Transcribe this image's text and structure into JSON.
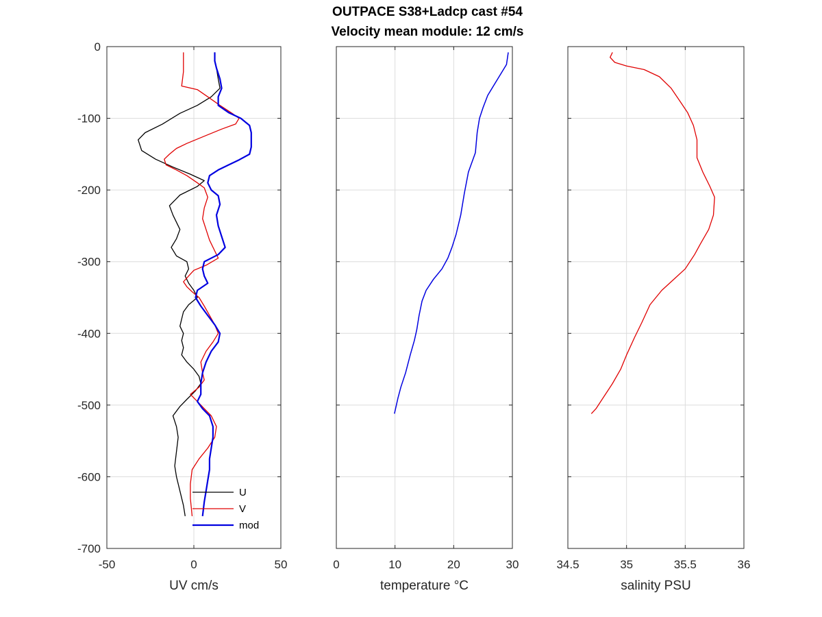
{
  "figure": {
    "title_line1": "OUTPACE S38+Ladcp cast #54",
    "title_line2": "Velocity mean module:  12 cm/s"
  },
  "chart_data": [
    {
      "type": "line",
      "id": "uv",
      "xlabel": "UV cm/s",
      "ylabel": "",
      "xlim": [
        -50,
        50
      ],
      "ylim": [
        -700,
        0
      ],
      "xticks": [
        -50,
        0,
        50
      ],
      "yticks": [
        0,
        -100,
        -200,
        -300,
        -400,
        -500,
        -600,
        -700
      ],
      "grid": true,
      "legend": {
        "placement": "bottom-right-inside",
        "entries": [
          "U",
          "V",
          "mod"
        ]
      },
      "series": [
        {
          "name": "U",
          "color": "#000000",
          "width": 1.3,
          "points": [
            [
              12,
              -8
            ],
            [
              12,
              -20
            ],
            [
              13,
              -30
            ],
            [
              14,
              -45
            ],
            [
              15,
              -58
            ],
            [
              10,
              -70
            ],
            [
              2,
              -82
            ],
            [
              -8,
              -93
            ],
            [
              -18,
              -108
            ],
            [
              -28,
              -120
            ],
            [
              -32,
              -130
            ],
            [
              -30,
              -145
            ],
            [
              -22,
              -157
            ],
            [
              -12,
              -168
            ],
            [
              -2,
              -178
            ],
            [
              6,
              -187
            ],
            [
              2,
              -195
            ],
            [
              -8,
              -207
            ],
            [
              -14,
              -222
            ],
            [
              -12,
              -235
            ],
            [
              -10,
              -245
            ],
            [
              -8,
              -255
            ],
            [
              -10,
              -268
            ],
            [
              -13,
              -280
            ],
            [
              -10,
              -292
            ],
            [
              -4,
              -300
            ],
            [
              -3,
              -310
            ],
            [
              -5,
              -320
            ],
            [
              -3,
              -330
            ],
            [
              0,
              -340
            ],
            [
              2,
              -350
            ],
            [
              -3,
              -360
            ],
            [
              -6,
              -370
            ],
            [
              -7,
              -380
            ],
            [
              -8,
              -390
            ],
            [
              -6,
              -400
            ],
            [
              -7,
              -410
            ],
            [
              -6,
              -420
            ],
            [
              -7,
              -430
            ],
            [
              -4,
              -440
            ],
            [
              0,
              -450
            ],
            [
              3,
              -460
            ],
            [
              4,
              -470
            ],
            [
              1,
              -480
            ],
            [
              -4,
              -492
            ],
            [
              -8,
              -502
            ],
            [
              -12,
              -515
            ],
            [
              -10,
              -530
            ],
            [
              -9,
              -545
            ],
            [
              -10,
              -565
            ],
            [
              -11,
              -585
            ],
            [
              -10,
              -600
            ],
            [
              -8,
              -620
            ],
            [
              -6,
              -640
            ],
            [
              -5,
              -655
            ]
          ]
        },
        {
          "name": "V",
          "color": "#e00000",
          "width": 1.3,
          "points": [
            [
              -6,
              -8
            ],
            [
              -6,
              -20
            ],
            [
              -6,
              -35
            ],
            [
              -7,
              -55
            ],
            [
              2,
              -60
            ],
            [
              8,
              -70
            ],
            [
              15,
              -82
            ],
            [
              22,
              -93
            ],
            [
              26,
              -100
            ],
            [
              24,
              -108
            ],
            [
              16,
              -115
            ],
            [
              6,
              -125
            ],
            [
              -4,
              -135
            ],
            [
              -10,
              -142
            ],
            [
              -14,
              -150
            ],
            [
              -17,
              -157
            ],
            [
              -16,
              -165
            ],
            [
              -10,
              -172
            ],
            [
              -4,
              -180
            ],
            [
              2,
              -190
            ],
            [
              6,
              -197
            ],
            [
              8,
              -210
            ],
            [
              6,
              -225
            ],
            [
              5,
              -240
            ],
            [
              7,
              -255
            ],
            [
              9,
              -270
            ],
            [
              12,
              -285
            ],
            [
              14,
              -295
            ],
            [
              7,
              -305
            ],
            [
              0,
              -312
            ],
            [
              -3,
              -320
            ],
            [
              -6,
              -328
            ],
            [
              -4,
              -335
            ],
            [
              -1,
              -342
            ],
            [
              3,
              -350
            ],
            [
              6,
              -362
            ],
            [
              9,
              -375
            ],
            [
              12,
              -388
            ],
            [
              14,
              -400
            ],
            [
              11,
              -412
            ],
            [
              7,
              -425
            ],
            [
              4,
              -440
            ],
            [
              5,
              -455
            ],
            [
              6,
              -465
            ],
            [
              3,
              -475
            ],
            [
              -2,
              -485
            ],
            [
              2,
              -495
            ],
            [
              6,
              -505
            ],
            [
              10,
              -515
            ],
            [
              13,
              -530
            ],
            [
              12,
              -545
            ],
            [
              8,
              -560
            ],
            [
              3,
              -575
            ],
            [
              -1,
              -590
            ],
            [
              -2,
              -610
            ],
            [
              -2,
              -630
            ],
            [
              -1,
              -655
            ]
          ]
        },
        {
          "name": "mod",
          "color": "#0000e0",
          "width": 2.2,
          "points": [
            [
              12,
              -8
            ],
            [
              12,
              -20
            ],
            [
              13,
              -30
            ],
            [
              15,
              -45
            ],
            [
              16,
              -58
            ],
            [
              14,
              -70
            ],
            [
              14,
              -82
            ],
            [
              20,
              -92
            ],
            [
              27,
              -100
            ],
            [
              32,
              -110
            ],
            [
              33,
              -120
            ],
            [
              33,
              -140
            ],
            [
              32,
              -150
            ],
            [
              26,
              -158
            ],
            [
              20,
              -165
            ],
            [
              14,
              -172
            ],
            [
              9,
              -180
            ],
            [
              8,
              -190
            ],
            [
              10,
              -200
            ],
            [
              14,
              -208
            ],
            [
              15,
              -220
            ],
            [
              13,
              -235
            ],
            [
              14,
              -250
            ],
            [
              16,
              -265
            ],
            [
              18,
              -280
            ],
            [
              14,
              -290
            ],
            [
              6,
              -300
            ],
            [
              5,
              -310
            ],
            [
              6,
              -320
            ],
            [
              8,
              -330
            ],
            [
              2,
              -340
            ],
            [
              1,
              -350
            ],
            [
              4,
              -362
            ],
            [
              8,
              -375
            ],
            [
              12,
              -388
            ],
            [
              15,
              -400
            ],
            [
              14,
              -412
            ],
            [
              10,
              -425
            ],
            [
              7,
              -440
            ],
            [
              5,
              -455
            ],
            [
              4,
              -470
            ],
            [
              4,
              -485
            ],
            [
              2,
              -495
            ],
            [
              5,
              -505
            ],
            [
              9,
              -515
            ],
            [
              11,
              -530
            ],
            [
              11,
              -545
            ],
            [
              10,
              -560
            ],
            [
              9,
              -575
            ],
            [
              9,
              -590
            ],
            [
              8,
              -605
            ],
            [
              7,
              -620
            ],
            [
              6,
              -635
            ],
            [
              5,
              -655
            ]
          ]
        }
      ]
    },
    {
      "type": "line",
      "id": "temp",
      "xlabel": "temperature °C",
      "ylabel": "",
      "xlim": [
        0,
        30
      ],
      "ylim": [
        -700,
        0
      ],
      "xticks": [
        0,
        10,
        20,
        30
      ],
      "yticks": [
        0,
        -100,
        -200,
        -300,
        -400,
        -500,
        -600,
        -700
      ],
      "grid": true,
      "series": [
        {
          "name": "",
          "color": "#0000e0",
          "width": 1.5,
          "points": [
            [
              29.3,
              -8
            ],
            [
              29.0,
              -25
            ],
            [
              27.5,
              -45
            ],
            [
              25.8,
              -68
            ],
            [
              25.0,
              -85
            ],
            [
              24.4,
              -100
            ],
            [
              24.0,
              -120
            ],
            [
              23.7,
              -148
            ],
            [
              22.5,
              -175
            ],
            [
              21.8,
              -205
            ],
            [
              21.2,
              -235
            ],
            [
              20.4,
              -262
            ],
            [
              19.7,
              -280
            ],
            [
              19.0,
              -295
            ],
            [
              18.0,
              -310
            ],
            [
              16.5,
              -325
            ],
            [
              15.3,
              -340
            ],
            [
              14.6,
              -355
            ],
            [
              14.1,
              -375
            ],
            [
              13.7,
              -395
            ],
            [
              13.3,
              -410
            ],
            [
              12.6,
              -430
            ],
            [
              11.8,
              -455
            ],
            [
              11.0,
              -475
            ],
            [
              10.5,
              -490
            ],
            [
              9.9,
              -512
            ]
          ]
        }
      ]
    },
    {
      "type": "line",
      "id": "sal",
      "xlabel": "salinity PSU",
      "ylabel": "",
      "xlim": [
        34.5,
        36
      ],
      "ylim": [
        -700,
        0
      ],
      "xticks": [
        34.5,
        35,
        35.5,
        36
      ],
      "xticklabels": [
        "34.5",
        "35",
        "35.5",
        "36"
      ],
      "yticks": [
        0,
        -100,
        -200,
        -300,
        -400,
        -500,
        -600,
        -700
      ],
      "grid": true,
      "series": [
        {
          "name": "",
          "color": "#e00000",
          "width": 1.3,
          "points": [
            [
              34.88,
              -8
            ],
            [
              34.86,
              -15
            ],
            [
              34.9,
              -22
            ],
            [
              35.0,
              -27
            ],
            [
              35.15,
              -32
            ],
            [
              35.28,
              -42
            ],
            [
              35.38,
              -58
            ],
            [
              35.45,
              -75
            ],
            [
              35.52,
              -92
            ],
            [
              35.57,
              -110
            ],
            [
              35.6,
              -130
            ],
            [
              35.6,
              -155
            ],
            [
              35.65,
              -175
            ],
            [
              35.71,
              -195
            ],
            [
              35.75,
              -210
            ],
            [
              35.74,
              -235
            ],
            [
              35.7,
              -255
            ],
            [
              35.63,
              -275
            ],
            [
              35.58,
              -290
            ],
            [
              35.5,
              -310
            ],
            [
              35.4,
              -325
            ],
            [
              35.3,
              -340
            ],
            [
              35.2,
              -360
            ],
            [
              35.13,
              -385
            ],
            [
              35.07,
              -405
            ],
            [
              35.0,
              -430
            ],
            [
              34.95,
              -450
            ],
            [
              34.88,
              -470
            ],
            [
              34.8,
              -490
            ],
            [
              34.74,
              -505
            ],
            [
              34.7,
              -512
            ]
          ]
        }
      ]
    }
  ]
}
